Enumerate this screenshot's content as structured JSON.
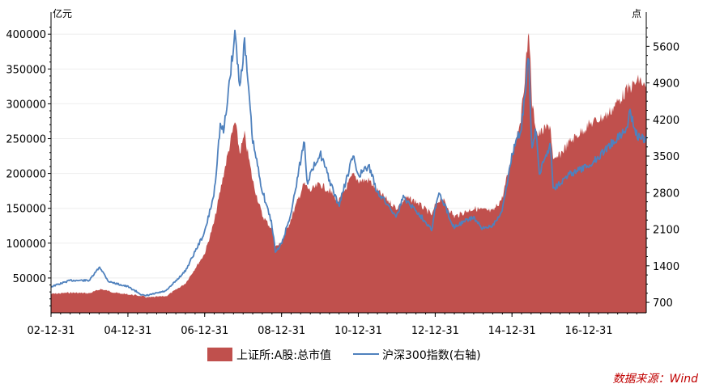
{
  "chart_data": {
    "type": "area",
    "left_axis_unit": "亿元",
    "right_axis_unit": "点",
    "left_ylim": [
      0,
      420000
    ],
    "right_ylim": [
      500,
      6100
    ],
    "left_ticks": [
      50000,
      100000,
      150000,
      200000,
      250000,
      300000,
      350000,
      400000
    ],
    "left_tick_labels": [
      "50000",
      "100000",
      "150000",
      "200000",
      "250000",
      "300000",
      "350000",
      "400000"
    ],
    "right_ticks": [
      700,
      1400,
      2100,
      2800,
      3500,
      4200,
      4900,
      5600
    ],
    "right_tick_labels": [
      "700",
      "1400",
      "2100",
      "2800",
      "3500",
      "4200",
      "4900",
      "5600"
    ],
    "x_range": [
      "2002-12-31",
      "2018-06-30"
    ],
    "x_ticks": [
      "2002-12-31",
      "2004-12-31",
      "2006-12-31",
      "2008-12-31",
      "2010-12-31",
      "2012-12-31",
      "2014-12-31",
      "2016-12-31"
    ],
    "x_tick_labels": [
      "02-12-31",
      "04-12-31",
      "06-12-31",
      "08-12-31",
      "10-12-31",
      "12-12-31",
      "14-12-31",
      "16-12-31"
    ],
    "series": [
      {
        "name": "上证所:A股:总市值",
        "kind": "area",
        "axis": "left",
        "color": "#C0504D",
        "points": [
          [
            "2002-12-31",
            27000
          ],
          [
            "2003-06-30",
            29000
          ],
          [
            "2003-12-31",
            28000
          ],
          [
            "2004-04-15",
            34000
          ],
          [
            "2004-09-30",
            28000
          ],
          [
            "2005-03-31",
            25000
          ],
          [
            "2005-07-15",
            22000
          ],
          [
            "2005-12-31",
            24000
          ],
          [
            "2006-06-30",
            42000
          ],
          [
            "2006-12-31",
            85000
          ],
          [
            "2007-03-31",
            130000
          ],
          [
            "2007-06-30",
            200000
          ],
          [
            "2007-09-30",
            265000
          ],
          [
            "2007-10-16",
            275000
          ],
          [
            "2007-11-30",
            230000
          ],
          [
            "2008-01-15",
            255000
          ],
          [
            "2008-03-31",
            190000
          ],
          [
            "2008-06-30",
            140000
          ],
          [
            "2008-09-30",
            120000
          ],
          [
            "2008-11-04",
            95000
          ],
          [
            "2008-12-31",
            100000
          ],
          [
            "2009-03-31",
            135000
          ],
          [
            "2009-07-31",
            185000
          ],
          [
            "2009-09-30",
            175000
          ],
          [
            "2009-12-31",
            185000
          ],
          [
            "2010-03-31",
            175000
          ],
          [
            "2010-06-30",
            160000
          ],
          [
            "2010-11-10",
            198000
          ],
          [
            "2010-12-31",
            190000
          ],
          [
            "2011-04-15",
            190000
          ],
          [
            "2011-06-30",
            175000
          ],
          [
            "2011-12-31",
            150000
          ],
          [
            "2012-03-31",
            165000
          ],
          [
            "2012-06-30",
            160000
          ],
          [
            "2012-12-03",
            140000
          ],
          [
            "2012-12-31",
            155000
          ],
          [
            "2013-02-28",
            165000
          ],
          [
            "2013-06-30",
            138000
          ],
          [
            "2013-12-31",
            150000
          ],
          [
            "2014-06-30",
            145000
          ],
          [
            "2014-09-30",
            165000
          ],
          [
            "2014-12-31",
            225000
          ],
          [
            "2015-03-31",
            285000
          ],
          [
            "2015-06-12",
            410000
          ],
          [
            "2015-07-08",
            300000
          ],
          [
            "2015-08-31",
            255000
          ],
          [
            "2015-12-31",
            270000
          ],
          [
            "2016-01-28",
            215000
          ],
          [
            "2016-06-30",
            245000
          ],
          [
            "2016-12-31",
            270000
          ],
          [
            "2017-06-30",
            285000
          ],
          [
            "2017-12-31",
            320000
          ],
          [
            "2018-04-30",
            335000
          ],
          [
            "2018-06-30",
            320000
          ]
        ]
      },
      {
        "name": "沪深300指数(右轴)",
        "kind": "line",
        "axis": "right",
        "color": "#4F81BD",
        "points": [
          [
            "2002-12-31",
            1000
          ],
          [
            "2003-06-30",
            1120
          ],
          [
            "2003-12-31",
            1120
          ],
          [
            "2004-04-07",
            1380
          ],
          [
            "2004-06-30",
            1100
          ],
          [
            "2004-12-31",
            1000
          ],
          [
            "2005-06-06",
            820
          ],
          [
            "2005-12-31",
            920
          ],
          [
            "2006-06-30",
            1300
          ],
          [
            "2006-12-31",
            2040
          ],
          [
            "2007-03-31",
            2780
          ],
          [
            "2007-05-29",
            4100
          ],
          [
            "2007-06-30",
            3950
          ],
          [
            "2007-10-16",
            5880
          ],
          [
            "2007-11-30",
            4800
          ],
          [
            "2008-01-14",
            5700
          ],
          [
            "2008-03-31",
            3800
          ],
          [
            "2008-06-30",
            2850
          ],
          [
            "2008-09-30",
            2200
          ],
          [
            "2008-11-04",
            1650
          ],
          [
            "2008-12-31",
            1820
          ],
          [
            "2009-03-31",
            2400
          ],
          [
            "2009-08-04",
            3800
          ],
          [
            "2009-09-01",
            3000
          ],
          [
            "2009-12-31",
            3570
          ],
          [
            "2010-05-20",
            2750
          ],
          [
            "2010-06-30",
            2550
          ],
          [
            "2010-11-10",
            3500
          ],
          [
            "2010-12-31",
            3130
          ],
          [
            "2011-04-15",
            3300
          ],
          [
            "2011-06-20",
            2850
          ],
          [
            "2011-12-31",
            2350
          ],
          [
            "2012-03-02",
            2720
          ],
          [
            "2012-06-30",
            2460
          ],
          [
            "2012-12-03",
            2100
          ],
          [
            "2012-12-31",
            2520
          ],
          [
            "2013-02-06",
            2790
          ],
          [
            "2013-06-25",
            2150
          ],
          [
            "2013-12-31",
            2330
          ],
          [
            "2014-03-20",
            2100
          ],
          [
            "2014-06-30",
            2180
          ],
          [
            "2014-09-30",
            2450
          ],
          [
            "2014-12-31",
            3530
          ],
          [
            "2015-03-31",
            4050
          ],
          [
            "2015-06-08",
            5380
          ],
          [
            "2015-07-08",
            3660
          ],
          [
            "2015-08-17",
            4000
          ],
          [
            "2015-09-15",
            3150
          ],
          [
            "2015-12-31",
            3730
          ],
          [
            "2016-01-28",
            2880
          ],
          [
            "2016-06-30",
            3150
          ],
          [
            "2016-12-31",
            3310
          ],
          [
            "2017-06-30",
            3670
          ],
          [
            "2017-12-31",
            4030
          ],
          [
            "2018-01-24",
            4390
          ],
          [
            "2018-03-31",
            3900
          ],
          [
            "2018-06-30",
            3800
          ]
        ]
      }
    ],
    "legend_position": "bottom"
  },
  "source_note": "数据来源：Wind",
  "colors": {
    "area": "#C0504D",
    "line": "#4F81BD",
    "source": "#C00000",
    "axis": "#000000"
  }
}
